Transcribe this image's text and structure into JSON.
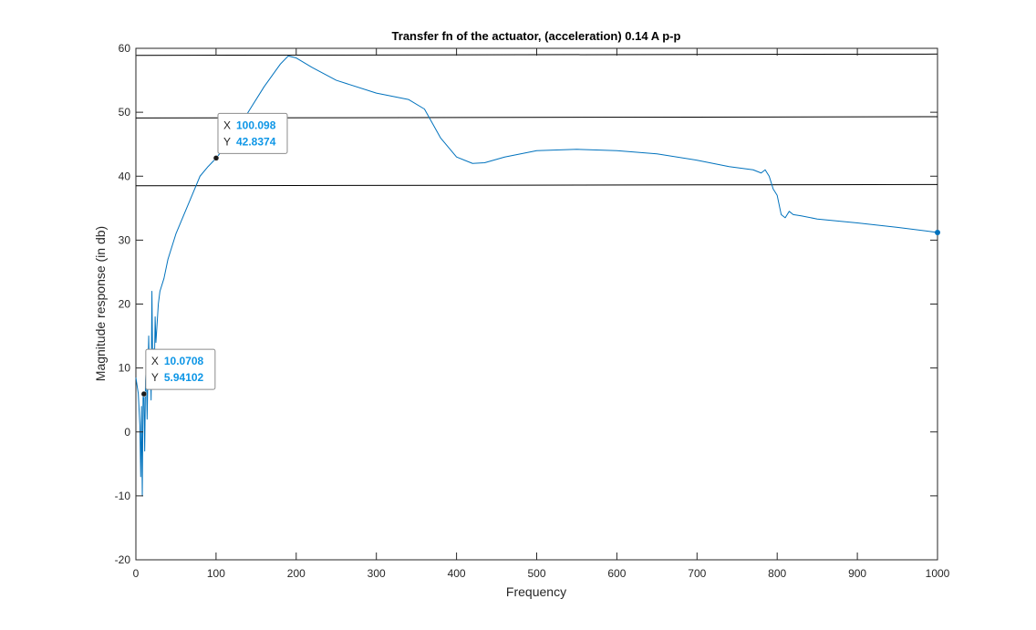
{
  "chart_data": {
    "type": "line",
    "title": "Transfer fn of the actuator, (acceleration) 0.14 A p-p",
    "xlabel": "Frequency",
    "ylabel": "Magnitude response (in db)",
    "xlim": [
      0,
      1000
    ],
    "ylim": [
      -20,
      60
    ],
    "xticks": [
      0,
      100,
      200,
      300,
      400,
      500,
      600,
      700,
      800,
      900,
      1000
    ],
    "yticks": [
      -20,
      -10,
      0,
      10,
      20,
      30,
      40,
      50,
      60
    ],
    "grid": false,
    "legend": "none",
    "series": [
      {
        "color": "#0072BD",
        "x": [
          0,
          3,
          5,
          6,
          7,
          8,
          9,
          10,
          11,
          12,
          13,
          14,
          15,
          16,
          17,
          18,
          19,
          20,
          21,
          22,
          23,
          24,
          25,
          26,
          28,
          30,
          35,
          40,
          50,
          60,
          70,
          80,
          90,
          100,
          120,
          140,
          160,
          180,
          190,
          200,
          220,
          250,
          300,
          340,
          360,
          380,
          400,
          420,
          435,
          460,
          500,
          550,
          600,
          650,
          700,
          740,
          770,
          780,
          785,
          790,
          795,
          800,
          805,
          810,
          815,
          820,
          830,
          850,
          900,
          950,
          1000
        ],
        "y": [
          8.5,
          6,
          1,
          -7,
          4,
          -10,
          6,
          5.9,
          -3,
          8,
          10,
          2,
          9,
          15,
          8,
          12,
          5,
          22,
          10,
          13,
          9,
          18,
          14,
          16,
          20,
          22,
          24,
          27,
          31,
          34,
          37,
          40,
          41.5,
          42.8,
          46,
          50,
          54,
          57.5,
          58.8,
          58.5,
          57,
          55,
          53,
          52,
          50.5,
          46,
          43,
          42,
          42.1,
          43,
          44,
          44.2,
          44,
          43.5,
          42.5,
          41.5,
          41,
          40.5,
          41,
          40,
          38,
          37,
          34,
          33.5,
          34.5,
          34,
          33.8,
          33.3,
          32.7,
          32,
          31.2
        ]
      }
    ],
    "reference_lines": [
      {
        "y_start": 58.9,
        "y_end": 59.1
      },
      {
        "y_start": 49.1,
        "y_end": 49.3
      },
      {
        "y_start": 38.5,
        "y_end": 38.7
      }
    ],
    "datatips": [
      {
        "x_label": "X",
        "y_label": "Y",
        "x_text": "100.098",
        "y_text": "42.8374",
        "x": 100.098,
        "y": 42.8374
      },
      {
        "x_label": "X",
        "y_label": "Y",
        "x_text": "10.0708",
        "y_text": "5.94102",
        "x": 10.0708,
        "y": 5.94102
      }
    ]
  }
}
